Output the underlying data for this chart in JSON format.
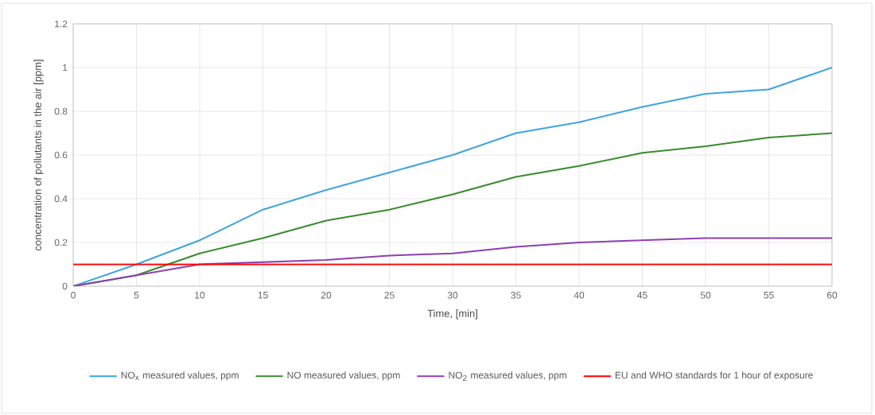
{
  "chart_data": {
    "type": "line",
    "xlabel": "Time, [min]",
    "ylabel": "concentration of pollutants in the air [ppm]",
    "x": [
      0,
      5,
      10,
      15,
      20,
      25,
      30,
      35,
      40,
      45,
      50,
      55,
      60
    ],
    "series": [
      {
        "name": "NO$_{x}$ measured values, ppm",
        "color": "#3fa4dc",
        "values": [
          0,
          0.1,
          0.21,
          0.35,
          0.44,
          0.52,
          0.6,
          0.7,
          0.75,
          0.82,
          0.88,
          0.9,
          1.0
        ]
      },
      {
        "name": "NO  measured values, ppm",
        "color": "#3a8a2e",
        "values": [
          0,
          0.05,
          0.15,
          0.22,
          0.3,
          0.35,
          0.42,
          0.5,
          0.55,
          0.61,
          0.64,
          0.68,
          0.7
        ]
      },
      {
        "name": "NO$_{2}$ measured values, ppm",
        "color": "#8e3fb0",
        "values": [
          0,
          0.05,
          0.1,
          0.11,
          0.12,
          0.14,
          0.15,
          0.18,
          0.2,
          0.21,
          0.22,
          0.22,
          0.22
        ]
      },
      {
        "name": "EU and WHO standards for 1 hour of exposure",
        "color": "#ff0000",
        "values": [
          0.1,
          0.1,
          0.1,
          0.1,
          0.1,
          0.1,
          0.1,
          0.1,
          0.1,
          0.1,
          0.1,
          0.1,
          0.1
        ]
      }
    ],
    "xlim": [
      0,
      60
    ],
    "xticks": [
      0,
      5,
      10,
      15,
      20,
      25,
      30,
      35,
      40,
      45,
      50,
      55,
      60
    ],
    "ylim": [
      0,
      1.2
    ],
    "yticks": [
      0,
      0.2,
      0.4,
      0.6,
      0.8,
      1,
      1.2
    ],
    "grid": true,
    "legend": "bottom",
    "marker": "none",
    "line_style": "solid"
  }
}
